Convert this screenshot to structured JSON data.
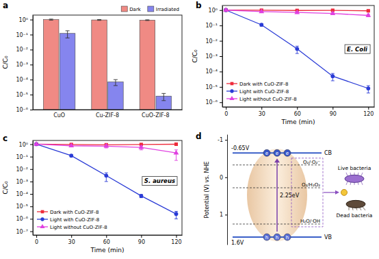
{
  "chart_data": [
    {
      "type": "bar",
      "title": "a",
      "ylabel": "C/C₀",
      "log": "y",
      "ylim": [
        1e-06,
        2
      ],
      "yticks": [
        {
          "value": 1e-06,
          "label": "10⁻⁶"
        },
        {
          "value": 1e-05,
          "label": "10⁻⁵"
        },
        {
          "value": 0.0001,
          "label": "10⁻⁴"
        },
        {
          "value": 0.001,
          "label": "10⁻³"
        },
        {
          "value": 0.01,
          "label": "10⁻²"
        },
        {
          "value": 0.1,
          "label": "10⁻¹"
        },
        {
          "value": 1,
          "label": "10⁰"
        }
      ],
      "legend": "upper right",
      "categories": [
        "CuO",
        "Cu-ZIF-8",
        "CuO-ZIF-8"
      ],
      "series": [
        {
          "name": "Dark",
          "color": "#f08a84",
          "values": [
            1,
            0.95,
            0.92
          ],
          "errors": [
            0.08,
            0.06,
            0.05
          ]
        },
        {
          "name": "Irradiated",
          "color": "#8585ee",
          "values": [
            0.12,
            7e-05,
            8e-06
          ],
          "errors": [
            0.06,
            3e-05,
            4e-06
          ]
        }
      ]
    },
    {
      "type": "line",
      "title": "b",
      "annotations": [
        "E. Coli"
      ],
      "xlabel": "Time (min)",
      "ylabel": "C/C₀",
      "log": "y",
      "x": [
        0,
        30,
        60,
        90,
        120
      ],
      "xlim": [
        -3,
        125
      ],
      "xticks": [
        0,
        30,
        60,
        90,
        120
      ],
      "ylim": [
        5e-07,
        2
      ],
      "yticks": [
        {
          "value": 1e-06,
          "label": "10⁻⁶"
        },
        {
          "value": 1e-05,
          "label": "10⁻⁵"
        },
        {
          "value": 0.0001,
          "label": "10⁻⁴"
        },
        {
          "value": 0.001,
          "label": "10⁻³"
        },
        {
          "value": 0.01,
          "label": "10⁻²"
        },
        {
          "value": 0.1,
          "label": "10⁻¹"
        },
        {
          "value": 1,
          "label": "10⁰"
        }
      ],
      "legend": "lower left",
      "series": [
        {
          "name": "Dark with CuO-ZIF-8",
          "color": "#ee2b3b",
          "marker": "square",
          "values": [
            1,
            0.98,
            0.95,
            0.97,
            0.9
          ],
          "errors": [
            0.05,
            0.05,
            0.05,
            0.05,
            0.05
          ]
        },
        {
          "name": "Light with CuO-ZIF-8",
          "color": "#2a3bd6",
          "marker": "circle",
          "values": [
            1,
            0.11,
            0.003,
            5e-05,
            8e-06
          ],
          "errors": [
            0.05,
            0.02,
            0.0015,
            2.5e-05,
            4e-06
          ]
        },
        {
          "name": "Light without CuO-ZIF-8",
          "color": "#e040e0",
          "marker": "triangle",
          "values": [
            1,
            0.8,
            0.7,
            0.6,
            0.45
          ],
          "errors": [
            0.05,
            0.08,
            0.1,
            0.1,
            0.08
          ]
        }
      ]
    },
    {
      "type": "line",
      "title": "c",
      "annotations": [
        "S. aureus"
      ],
      "xlabel": "Time (min)",
      "ylabel": "C/C₀",
      "log": "y",
      "x": [
        0,
        30,
        60,
        90,
        120
      ],
      "xlim": [
        -3,
        125
      ],
      "xticks": [
        0,
        30,
        60,
        90,
        120
      ],
      "ylim": [
        5e-08,
        2
      ],
      "yticks": [
        {
          "value": 1e-07,
          "label": "10⁻⁷"
        },
        {
          "value": 1e-06,
          "label": "10⁻⁶"
        },
        {
          "value": 1e-05,
          "label": "10⁻⁵"
        },
        {
          "value": 0.0001,
          "label": "10⁻⁴"
        },
        {
          "value": 0.001,
          "label": "10⁻³"
        },
        {
          "value": 0.01,
          "label": "10⁻²"
        },
        {
          "value": 0.1,
          "label": "10⁻¹"
        },
        {
          "value": 1,
          "label": "10⁰"
        }
      ],
      "legend": "lower left",
      "series": [
        {
          "name": "Dark with CuO-ZIF-8",
          "color": "#ee2b3b",
          "marker": "square",
          "values": [
            1,
            0.95,
            0.9,
            0.95,
            1
          ],
          "errors": [
            0.05,
            0.05,
            0.05,
            0.05,
            0.05
          ]
        },
        {
          "name": "Light with CuO-ZIF-8",
          "color": "#2a3bd6",
          "marker": "circle",
          "values": [
            1,
            0.12,
            0.003,
            7e-05,
            2.5e-06
          ],
          "errors": [
            0.05,
            0.02,
            0.002,
            2e-05,
            1.5e-06
          ]
        },
        {
          "name": "Light without CuO-ZIF-8",
          "color": "#e040e0",
          "marker": "triangle",
          "values": [
            1,
            0.75,
            0.7,
            0.55,
            0.2
          ],
          "errors": [
            0.05,
            0.1,
            0.2,
            0.2,
            0.15
          ]
        }
      ]
    }
  ],
  "diagram": {
    "label": "d",
    "axis": {
      "title": "Potential (V) vs. NHE",
      "lim": [
        -1.15,
        1.8
      ],
      "ticks": [
        -1,
        0,
        1
      ]
    },
    "cb": {
      "label": "CB",
      "value": -0.65,
      "value_label": "-0.65V"
    },
    "vb": {
      "label": "VB",
      "value": 1.6,
      "value_label": "1.6V"
    },
    "band_gap": "2.25eV",
    "levels": [
      {
        "label": "O₂/·O₂⁻",
        "value": -0.33
      },
      {
        "label": "O₂/H₂O₂",
        "value": 0.28
      },
      {
        "label": "H₂O/·OH",
        "value": 1.25
      }
    ],
    "electrons": [
      "e",
      "e",
      "e"
    ],
    "holes": [
      "h",
      "h",
      "h"
    ],
    "bacteria": [
      "Live bacteria",
      "Dead bacteria"
    ]
  }
}
